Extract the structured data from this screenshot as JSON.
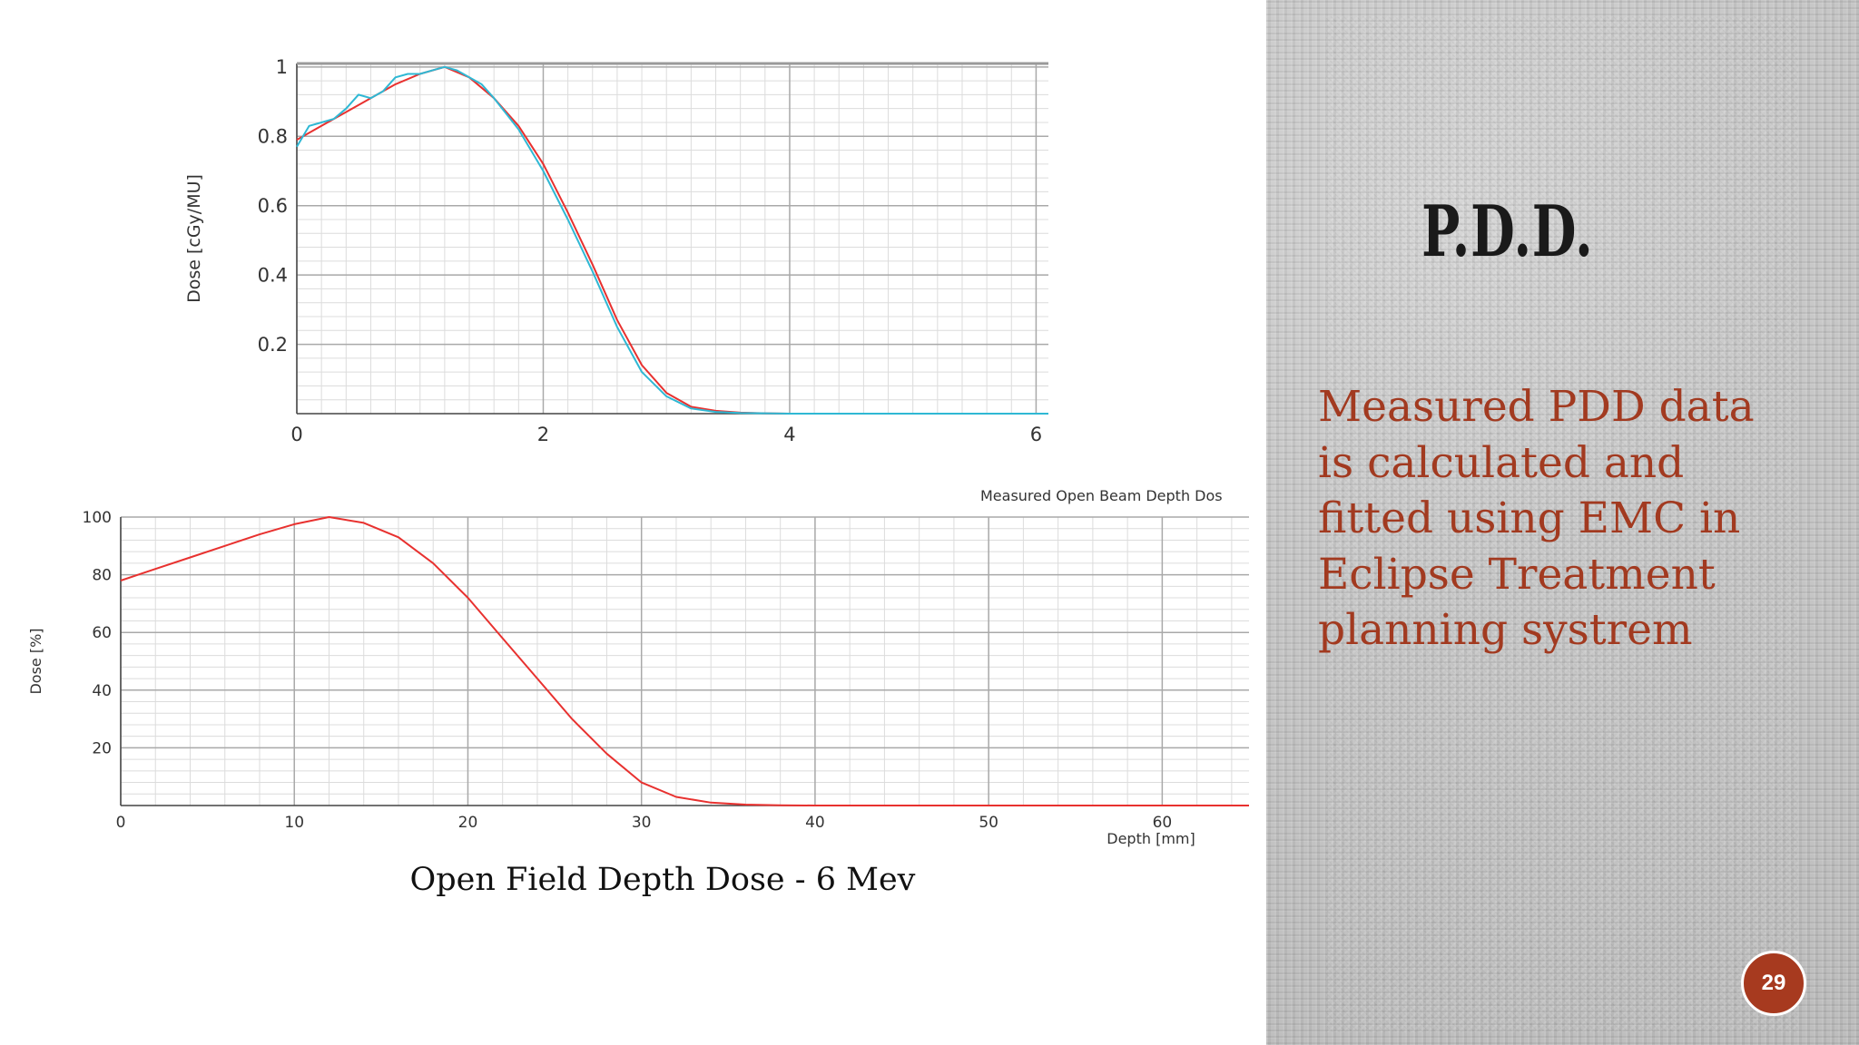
{
  "slide": {
    "title": "P.D.D.",
    "side_text_lines": [
      "Measured PDD data",
      "is calculated and",
      "fitted using EMC in",
      "Eclipse Treatment",
      "planning systrem"
    ],
    "caption": "Open Field Depth Dose - 6 Mev",
    "page_number": "29"
  },
  "colors": {
    "accent_text": "#a23a20",
    "badge": "#a73a1f",
    "series_red": "#e8312f",
    "series_cyan": "#2fb8d4"
  },
  "chart_data": [
    {
      "type": "line",
      "title": "",
      "ylabel": "Dose [cGy/MU]",
      "xlabel": "",
      "xlim": [
        0,
        6.1
      ],
      "ylim": [
        0,
        1.01
      ],
      "x_ticks": [
        0,
        2,
        4,
        6
      ],
      "x_tick_labels": [
        "0",
        "2",
        "4",
        "6"
      ],
      "y_ticks": [
        0.2,
        0.4,
        0.6,
        0.8,
        1
      ],
      "y_tick_labels": [
        "0.2",
        "0.4",
        "0.6",
        "0.8",
        "1"
      ],
      "grid": true,
      "series": [
        {
          "color": "#e8312f",
          "x": [
            0,
            0.2,
            0.4,
            0.6,
            0.8,
            1.0,
            1.2,
            1.4,
            1.6,
            1.8,
            2.0,
            2.2,
            2.4,
            2.6,
            2.8,
            3.0,
            3.2,
            3.4,
            3.6,
            3.8,
            4.0,
            5.0,
            6.1
          ],
          "y": [
            0.79,
            0.83,
            0.87,
            0.91,
            0.95,
            0.98,
            1.0,
            0.97,
            0.91,
            0.83,
            0.72,
            0.58,
            0.43,
            0.27,
            0.14,
            0.06,
            0.02,
            0.008,
            0.003,
            0.001,
            0.0,
            0.0,
            0.0
          ]
        },
        {
          "color": "#2fb8d4",
          "x": [
            0,
            0.1,
            0.2,
            0.3,
            0.4,
            0.5,
            0.6,
            0.7,
            0.8,
            0.9,
            1.0,
            1.1,
            1.2,
            1.3,
            1.4,
            1.5,
            1.6,
            1.8,
            2.0,
            2.2,
            2.4,
            2.6,
            2.8,
            3.0,
            3.2,
            3.4,
            3.6,
            3.8,
            4.0,
            5.0,
            6.1
          ],
          "y": [
            0.77,
            0.83,
            0.84,
            0.85,
            0.88,
            0.92,
            0.91,
            0.93,
            0.97,
            0.98,
            0.98,
            0.99,
            1.0,
            0.99,
            0.97,
            0.95,
            0.91,
            0.82,
            0.7,
            0.56,
            0.41,
            0.25,
            0.12,
            0.05,
            0.015,
            0.005,
            0.002,
            0.001,
            0.0,
            0.0,
            0.0
          ]
        }
      ]
    },
    {
      "type": "line",
      "title": "Measured Open Beam Depth Dos",
      "ylabel": "Dose [%]",
      "xlabel": "Depth [mm]",
      "xlim": [
        0,
        65
      ],
      "ylim": [
        0,
        100
      ],
      "x_ticks": [
        0,
        10,
        20,
        30,
        40,
        50,
        60
      ],
      "x_tick_labels": [
        "0",
        "10",
        "20",
        "30",
        "40",
        "50",
        "60"
      ],
      "y_ticks": [
        20,
        40,
        60,
        80,
        100
      ],
      "y_tick_labels": [
        "20",
        "40",
        "60",
        "80",
        "100"
      ],
      "grid": true,
      "series": [
        {
          "color": "#e8312f",
          "x": [
            0,
            2,
            4,
            6,
            8,
            10,
            12,
            14,
            16,
            18,
            20,
            22,
            24,
            26,
            28,
            30,
            32,
            34,
            36,
            38,
            40,
            50,
            65
          ],
          "y": [
            78,
            82,
            86,
            90,
            94,
            97.5,
            100,
            98,
            93,
            84,
            72,
            58,
            44,
            30,
            18,
            8,
            3,
            1,
            0.3,
            0.1,
            0,
            0,
            0
          ]
        }
      ]
    }
  ]
}
